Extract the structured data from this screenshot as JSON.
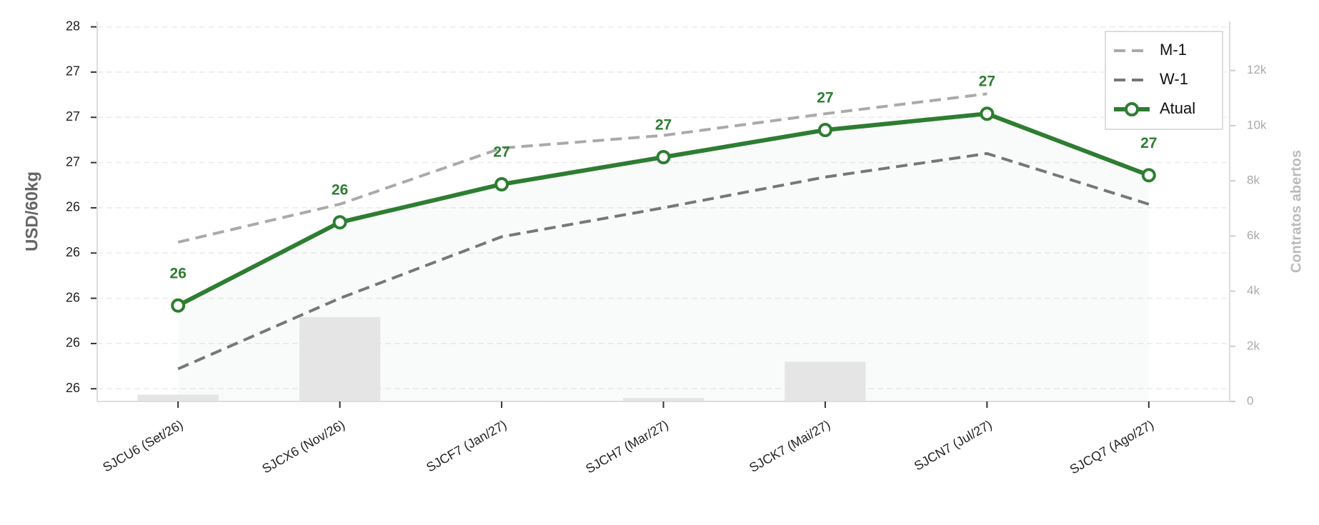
{
  "chart_data": {
    "type": "line",
    "y_label": "USD/60kg",
    "y2_label": "Contratos abertos",
    "categories": [
      "SJCU6 (Set/26)",
      "SJCX6 (Nov/26)",
      "SJCF7 (Jan/27)",
      "SJCH7 (Mar/27)",
      "SJCK7 (Mai/27)",
      "SJCN7 (Jul/27)",
      "SJCQ7 (Ago/27)"
    ],
    "series": [
      {
        "name": "M-1",
        "color": "#aaaaaa",
        "dash": true,
        "values": [
          26.31,
          26.52,
          26.83,
          26.9,
          27.02,
          27.13,
          null
        ]
      },
      {
        "name": "W-1",
        "color": "#777777",
        "dash": true,
        "values": [
          25.61,
          26.0,
          26.34,
          26.5,
          26.67,
          26.8,
          26.52
        ]
      },
      {
        "name": "Atual",
        "color": "#2e7d32",
        "markers": true,
        "values": [
          25.96,
          26.42,
          26.63,
          26.78,
          26.93,
          27.02,
          26.68
        ],
        "value_labels": [
          "26",
          "26",
          "27",
          "27",
          "27",
          "27",
          "27"
        ]
      }
    ],
    "bars": {
      "axis": "y2",
      "color": "#e4e5e4",
      "values": [
        245,
        3060,
        30,
        120,
        1440,
        0,
        0
      ]
    },
    "ylim": [
      25.43,
      27.53
    ],
    "yticks": [
      {
        "value": 25.5,
        "label": "26"
      },
      {
        "value": 25.75,
        "label": "26"
      },
      {
        "value": 26.0,
        "label": "26"
      },
      {
        "value": 26.25,
        "label": "26"
      },
      {
        "value": 26.5,
        "label": "26"
      },
      {
        "value": 26.75,
        "label": "27"
      },
      {
        "value": 27.0,
        "label": "27"
      },
      {
        "value": 27.25,
        "label": "27"
      },
      {
        "value": 27.5,
        "label": "28"
      }
    ],
    "y2lim": [
      0,
      13780
    ],
    "y2ticks": [
      0,
      {
        "value": 2000,
        "label": "2k"
      },
      {
        "value": 4000,
        "label": "4k"
      },
      {
        "value": 6000,
        "label": "6k"
      },
      {
        "value": 8000,
        "label": "8k"
      },
      {
        "value": 10000,
        "label": "10k"
      },
      {
        "value": 12000,
        "label": "12k"
      }
    ],
    "grid": true,
    "legend": "upper right"
  }
}
